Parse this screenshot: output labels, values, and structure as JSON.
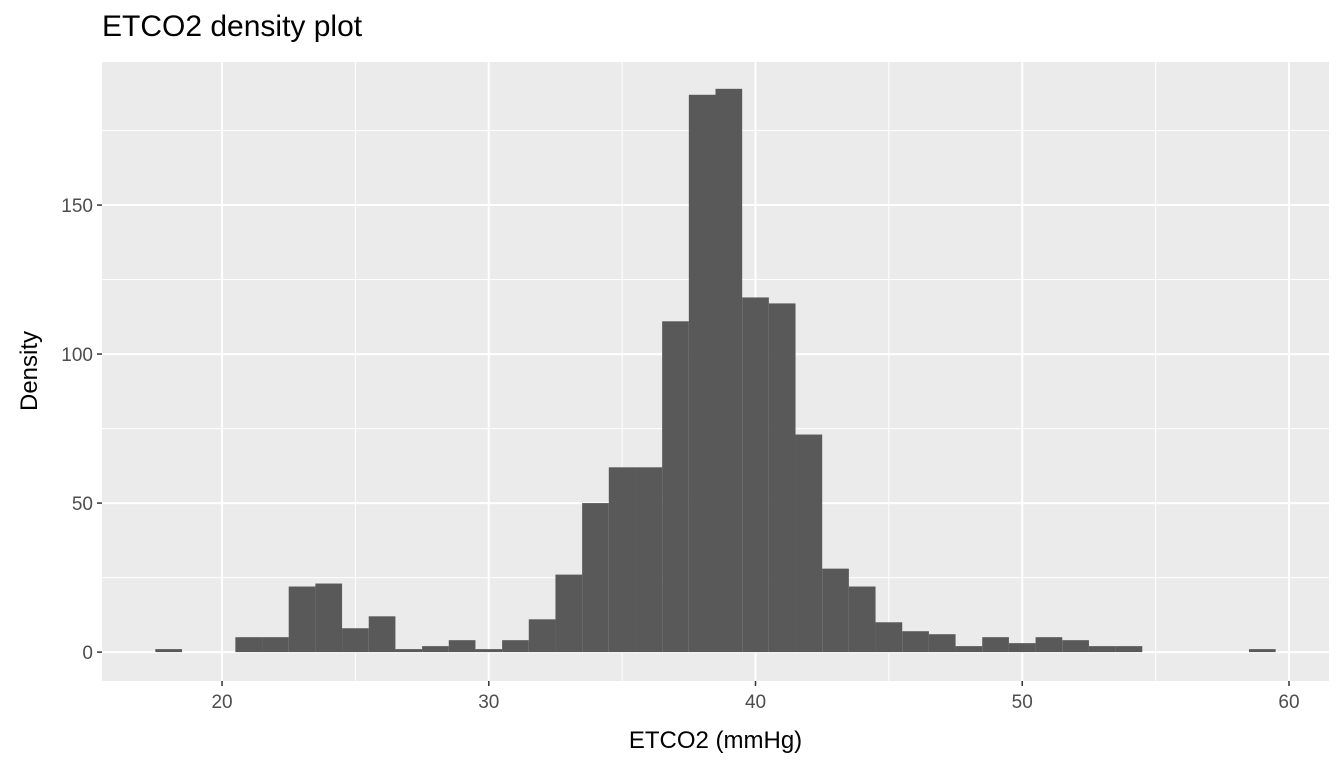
{
  "chart_data": {
    "type": "bar",
    "title": "ETCO2 density plot",
    "xlabel": "ETCO2 (mmHg)",
    "ylabel": "Density",
    "xlim": [
      15.5,
      61.5
    ],
    "ylim": [
      -9.7,
      198
    ],
    "x_ticks": [
      20,
      30,
      40,
      50,
      60
    ],
    "y_ticks": [
      0,
      50,
      100,
      150
    ],
    "grid": true,
    "bin_width": 1,
    "bins": [
      {
        "x": 18,
        "value": 1
      },
      {
        "x": 21,
        "value": 5
      },
      {
        "x": 22,
        "value": 5
      },
      {
        "x": 23,
        "value": 22
      },
      {
        "x": 24,
        "value": 23
      },
      {
        "x": 25,
        "value": 8
      },
      {
        "x": 26,
        "value": 12
      },
      {
        "x": 27,
        "value": 1
      },
      {
        "x": 28,
        "value": 2
      },
      {
        "x": 29,
        "value": 4
      },
      {
        "x": 30,
        "value": 1
      },
      {
        "x": 31,
        "value": 4
      },
      {
        "x": 32,
        "value": 11
      },
      {
        "x": 33,
        "value": 26
      },
      {
        "x": 34,
        "value": 50
      },
      {
        "x": 35,
        "value": 62
      },
      {
        "x": 36,
        "value": 62
      },
      {
        "x": 37,
        "value": 111
      },
      {
        "x": 38,
        "value": 187
      },
      {
        "x": 39,
        "value": 189
      },
      {
        "x": 40,
        "value": 119
      },
      {
        "x": 41,
        "value": 117
      },
      {
        "x": 42,
        "value": 73
      },
      {
        "x": 43,
        "value": 28
      },
      {
        "x": 44,
        "value": 22
      },
      {
        "x": 45,
        "value": 10
      },
      {
        "x": 46,
        "value": 7
      },
      {
        "x": 47,
        "value": 6
      },
      {
        "x": 48,
        "value": 2
      },
      {
        "x": 49,
        "value": 5
      },
      {
        "x": 50,
        "value": 3
      },
      {
        "x": 51,
        "value": 5
      },
      {
        "x": 52,
        "value": 4
      },
      {
        "x": 53,
        "value": 2
      },
      {
        "x": 54,
        "value": 2
      },
      {
        "x": 59,
        "value": 1
      }
    ],
    "colors": {
      "bar": "#595959",
      "panel": "#ebebeb",
      "grid": "#ffffff",
      "tick_text": "#4d4d4d",
      "tick_mark": "#333333"
    }
  }
}
